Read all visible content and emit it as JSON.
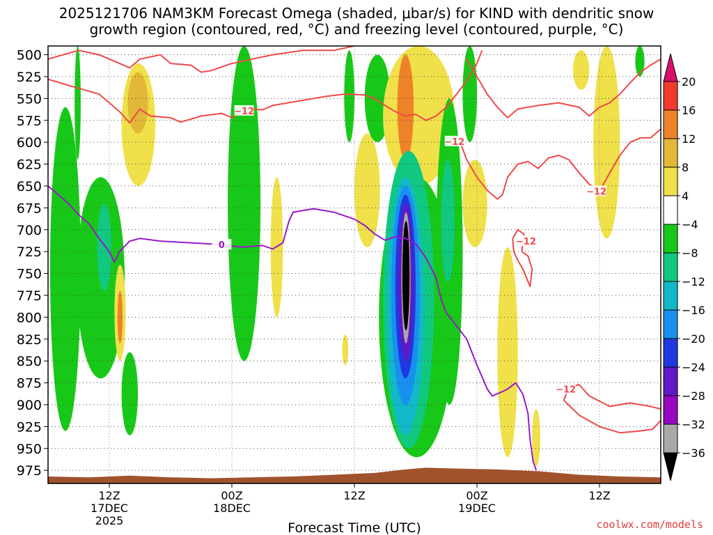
{
  "header": {
    "title_line1": "2025121706 NAM3KM Forecast Omega (shaded, μbar/s) for KIND with dendritic snow",
    "title_line2": "growth region (contoured, red, °C) and freezing level (contoured, purple, °C)"
  },
  "footer": {
    "xlabel": "Forecast Time (UTC)",
    "credit": "coolwx.com/models"
  },
  "chart_data": {
    "type": "heatmap",
    "title": "2025121706 NAM3KM Forecast Omega (shaded, μbar/s) for KIND with dendritic snow growth region (contoured, red, °C) and freezing level (contoured, purple, °C)",
    "xlabel": "Forecast Time (UTC)",
    "ylabel": "",
    "y_axis": {
      "ticks": [
        500,
        525,
        550,
        575,
        600,
        625,
        650,
        675,
        700,
        725,
        750,
        775,
        800,
        825,
        850,
        875,
        900,
        925,
        950,
        975
      ],
      "range": [
        500,
        990
      ],
      "inverted": true
    },
    "x_axis": {
      "range_hours": [
        0,
        60
      ],
      "ticks": [
        {
          "hour": 6,
          "label": "12Z",
          "sub1": "17DEC",
          "sub2": "2025"
        },
        {
          "hour": 18,
          "label": "00Z",
          "sub1": "18DEC",
          "sub2": ""
        },
        {
          "hour": 30,
          "label": "12Z",
          "sub1": "",
          "sub2": ""
        },
        {
          "hour": 42,
          "label": "00Z",
          "sub1": "19DEC",
          "sub2": ""
        },
        {
          "hour": 54,
          "label": "12Z",
          "sub1": "",
          "sub2": ""
        }
      ]
    },
    "grid": true,
    "colorbar": {
      "labels": [
        "20",
        "16",
        "12",
        "8",
        "4",
        "−4",
        "−8",
        "−12",
        "−16",
        "−20",
        "−24",
        "−28",
        "−32",
        "−36"
      ],
      "colors": [
        "#d8106a",
        "#f03a2e",
        "#ee8228",
        "#e2b838",
        "#f0e04a",
        "#ffffff",
        "#18c818",
        "#10c880",
        "#10b8c8",
        "#1890f0",
        "#2038e0",
        "#6018c8",
        "#9808c0",
        "#a8a8a8",
        "#000000"
      ]
    },
    "omega_regions": [
      {
        "t0": 0.2,
        "t1": 3.2,
        "p0": 560,
        "p1": 930,
        "color": "#18c818"
      },
      {
        "t0": 2.8,
        "t1": 7.5,
        "p0": 640,
        "p1": 870,
        "color": "#18c818"
      },
      {
        "t0": 4.8,
        "t1": 6.2,
        "p0": 670,
        "p1": 770,
        "color": "#10c880"
      },
      {
        "t0": 6.5,
        "t1": 7.6,
        "p0": 740,
        "p1": 850,
        "color": "#f0e04a"
      },
      {
        "t0": 6.8,
        "t1": 7.3,
        "p0": 770,
        "p1": 830,
        "color": "#ee8228"
      },
      {
        "t0": 7.2,
        "t1": 8.8,
        "p0": 840,
        "p1": 935,
        "color": "#18c818"
      },
      {
        "t0": 7.2,
        "t1": 10.5,
        "p0": 510,
        "p1": 650,
        "color": "#f0e04a"
      },
      {
        "t0": 7.8,
        "t1": 9.8,
        "p0": 520,
        "p1": 590,
        "color": "#e2b838"
      },
      {
        "t0": 2.6,
        "t1": 3.2,
        "p0": 490,
        "p1": 620,
        "color": "#18c818"
      },
      {
        "t0": 17.6,
        "t1": 20.8,
        "p0": 490,
        "p1": 850,
        "color": "#18c818"
      },
      {
        "t0": 21.8,
        "t1": 23.0,
        "p0": 640,
        "p1": 800,
        "color": "#f0e04a"
      },
      {
        "t0": 29.0,
        "t1": 30.0,
        "p0": 495,
        "p1": 600,
        "color": "#18c818"
      },
      {
        "t0": 30.0,
        "t1": 32.5,
        "p0": 590,
        "p1": 720,
        "color": "#f0e04a"
      },
      {
        "t0": 31.0,
        "t1": 33.5,
        "p0": 500,
        "p1": 600,
        "color": "#18c818"
      },
      {
        "t0": 32.8,
        "t1": 39.8,
        "p0": 490,
        "p1": 650,
        "color": "#f0e04a"
      },
      {
        "t0": 34.2,
        "t1": 35.8,
        "p0": 500,
        "p1": 620,
        "color": "#ee8228"
      },
      {
        "t0": 32.4,
        "t1": 39.8,
        "p0": 640,
        "p1": 960,
        "color": "#18c818"
      },
      {
        "t0": 32.8,
        "t1": 37.8,
        "p0": 610,
        "p1": 950,
        "color": "#10c880"
      },
      {
        "t0": 33.2,
        "t1": 36.8,
        "p0": 640,
        "p1": 935,
        "color": "#10b8c8"
      },
      {
        "t0": 33.6,
        "t1": 36.4,
        "p0": 650,
        "p1": 900,
        "color": "#1890f0"
      },
      {
        "t0": 34.0,
        "t1": 36.0,
        "p0": 660,
        "p1": 870,
        "color": "#2038e0"
      },
      {
        "t0": 34.3,
        "t1": 35.8,
        "p0": 670,
        "p1": 850,
        "color": "#6018c8"
      },
      {
        "t0": 34.6,
        "t1": 35.5,
        "p0": 680,
        "p1": 830,
        "color": "#a8a8a8"
      },
      {
        "t0": 34.7,
        "t1": 35.4,
        "p0": 690,
        "p1": 815,
        "color": "#000000"
      },
      {
        "t0": 38.0,
        "t1": 40.6,
        "p0": 550,
        "p1": 900,
        "color": "#18c818"
      },
      {
        "t0": 38.5,
        "t1": 39.8,
        "p0": 620,
        "p1": 760,
        "color": "#10c880"
      },
      {
        "t0": 40.6,
        "t1": 42.0,
        "p0": 490,
        "p1": 600,
        "color": "#18c818"
      },
      {
        "t0": 40.6,
        "t1": 43.0,
        "p0": 620,
        "p1": 720,
        "color": "#f0e04a"
      },
      {
        "t0": 44.0,
        "t1": 46.0,
        "p0": 720,
        "p1": 960,
        "color": "#f0e04a"
      },
      {
        "t0": 47.4,
        "t1": 48.2,
        "p0": 905,
        "p1": 970,
        "color": "#f0e04a"
      },
      {
        "t0": 53.4,
        "t1": 56.0,
        "p0": 490,
        "p1": 710,
        "color": "#f0e04a"
      },
      {
        "t0": 51.4,
        "t1": 53.0,
        "p0": 495,
        "p1": 540,
        "color": "#f0e04a"
      },
      {
        "t0": 57.5,
        "t1": 58.4,
        "p0": 490,
        "p1": 525,
        "color": "#18c818"
      },
      {
        "t0": 28.8,
        "t1": 29.4,
        "p0": 820,
        "p1": 855,
        "color": "#f0e04a"
      }
    ],
    "dgz_contours": [
      {
        "label": "-12",
        "points": [
          [
            0,
            505
          ],
          [
            3,
            495
          ],
          [
            5,
            500
          ],
          [
            7,
            510
          ],
          [
            8,
            515
          ],
          [
            9,
            505
          ],
          [
            11,
            500
          ],
          [
            12,
            510
          ],
          [
            14,
            512
          ],
          [
            15,
            520
          ],
          [
            16,
            518
          ],
          [
            18,
            510
          ],
          [
            20,
            505
          ],
          [
            22,
            500
          ],
          [
            25,
            495
          ],
          [
            28,
            495
          ],
          [
            30,
            490
          ]
        ]
      },
      {
        "label": "-12",
        "points": [
          [
            0,
            528
          ],
          [
            2,
            535
          ],
          [
            5,
            545
          ],
          [
            6,
            555
          ],
          [
            7,
            565
          ],
          [
            8,
            578
          ],
          [
            9,
            562
          ],
          [
            10,
            570
          ],
          [
            12,
            572
          ],
          [
            13,
            577
          ],
          [
            15,
            570
          ],
          [
            17,
            567
          ],
          [
            18,
            572
          ],
          [
            19,
            565
          ],
          [
            20,
            562
          ],
          [
            21,
            563
          ],
          [
            22,
            558
          ],
          [
            25,
            552
          ],
          [
            27,
            548
          ],
          [
            29,
            545
          ],
          [
            31,
            546
          ],
          [
            32,
            550
          ],
          [
            33,
            558
          ],
          [
            34,
            565
          ],
          [
            35,
            570
          ],
          [
            36,
            568
          ],
          [
            37,
            575
          ],
          [
            38,
            570
          ],
          [
            39,
            560
          ],
          [
            40,
            545
          ],
          [
            41,
            530
          ],
          [
            42,
            510
          ],
          [
            42.5,
            495
          ]
        ]
      },
      {
        "label": "-12",
        "points": [
          [
            41,
            505
          ],
          [
            42,
            525
          ],
          [
            43,
            545
          ],
          [
            44,
            560
          ],
          [
            45,
            572
          ],
          [
            46,
            562
          ],
          [
            48,
            558
          ],
          [
            50,
            555
          ],
          [
            52,
            560
          ],
          [
            53,
            570
          ],
          [
            54,
            560
          ],
          [
            55,
            555
          ],
          [
            56,
            545
          ],
          [
            57,
            532
          ],
          [
            58,
            520
          ],
          [
            59,
            512
          ],
          [
            60,
            505
          ]
        ]
      },
      {
        "label": "-12",
        "points": [
          [
            40.2,
            595
          ],
          [
            41,
            620
          ],
          [
            42,
            640
          ],
          [
            43,
            655
          ],
          [
            44,
            665
          ],
          [
            44.5,
            660
          ],
          [
            45,
            640
          ],
          [
            46,
            625
          ],
          [
            47,
            622
          ],
          [
            48,
            630
          ],
          [
            49,
            618
          ],
          [
            50,
            615
          ],
          [
            51,
            620
          ],
          [
            52,
            635
          ],
          [
            53,
            648
          ],
          [
            54,
            656
          ],
          [
            55,
            635
          ],
          [
            56,
            615
          ],
          [
            57,
            600
          ],
          [
            58,
            595
          ],
          [
            59,
            595
          ],
          [
            60,
            585
          ]
        ]
      },
      {
        "label": "-12",
        "points": [
          [
            45.5,
            710
          ],
          [
            46,
            700
          ],
          [
            46.6,
            705
          ],
          [
            46.4,
            725
          ],
          [
            47,
            730
          ],
          [
            47.4,
            745
          ],
          [
            47.2,
            765
          ],
          [
            46.5,
            745
          ],
          [
            46,
            735
          ],
          [
            45.6,
            725
          ],
          [
            45.5,
            710
          ]
        ]
      },
      {
        "label": "-12",
        "points": [
          [
            50.5,
            895
          ],
          [
            51,
            880
          ],
          [
            52,
            877
          ],
          [
            53,
            890
          ],
          [
            55,
            902
          ],
          [
            57,
            898
          ],
          [
            59,
            902
          ],
          [
            60,
            905
          ]
        ]
      },
      {
        "label": "-12",
        "points": [
          [
            50.5,
            895
          ],
          [
            52,
            912
          ],
          [
            54,
            925
          ],
          [
            56,
            932
          ],
          [
            58,
            930
          ],
          [
            59.2,
            928
          ],
          [
            60,
            918
          ]
        ]
      }
    ],
    "freezing_contour": {
      "label": "0",
      "points": [
        [
          0,
          650
        ],
        [
          1,
          660
        ],
        [
          2,
          670
        ],
        [
          3,
          683
        ],
        [
          4,
          693
        ],
        [
          5,
          710
        ],
        [
          6,
          725
        ],
        [
          6.5,
          737
        ],
        [
          7,
          725
        ],
        [
          8,
          713
        ],
        [
          9,
          710
        ],
        [
          11,
          713
        ],
        [
          14,
          715
        ],
        [
          17,
          717
        ],
        [
          19,
          720
        ],
        [
          21,
          718
        ],
        [
          22,
          722
        ],
        [
          23,
          715
        ],
        [
          23.6,
          690
        ],
        [
          24,
          680
        ],
        [
          26,
          676
        ],
        [
          28,
          680
        ],
        [
          30,
          688
        ],
        [
          31,
          695
        ],
        [
          32,
          705
        ],
        [
          33,
          712
        ],
        [
          34,
          708
        ],
        [
          35,
          710
        ],
        [
          36,
          716
        ],
        [
          37,
          732
        ],
        [
          38,
          755
        ],
        [
          38.5,
          780
        ],
        [
          39,
          795
        ],
        [
          40,
          810
        ],
        [
          41,
          825
        ],
        [
          41.5,
          840
        ],
        [
          42,
          855
        ],
        [
          42.5,
          868
        ],
        [
          43,
          882
        ],
        [
          43.5,
          890
        ],
        [
          44.5,
          885
        ],
        [
          45,
          882
        ],
        [
          45.8,
          875
        ],
        [
          46.5,
          888
        ],
        [
          47,
          910
        ],
        [
          47.2,
          940
        ],
        [
          47.5,
          965
        ],
        [
          47.8,
          975
        ]
      ]
    }
  }
}
